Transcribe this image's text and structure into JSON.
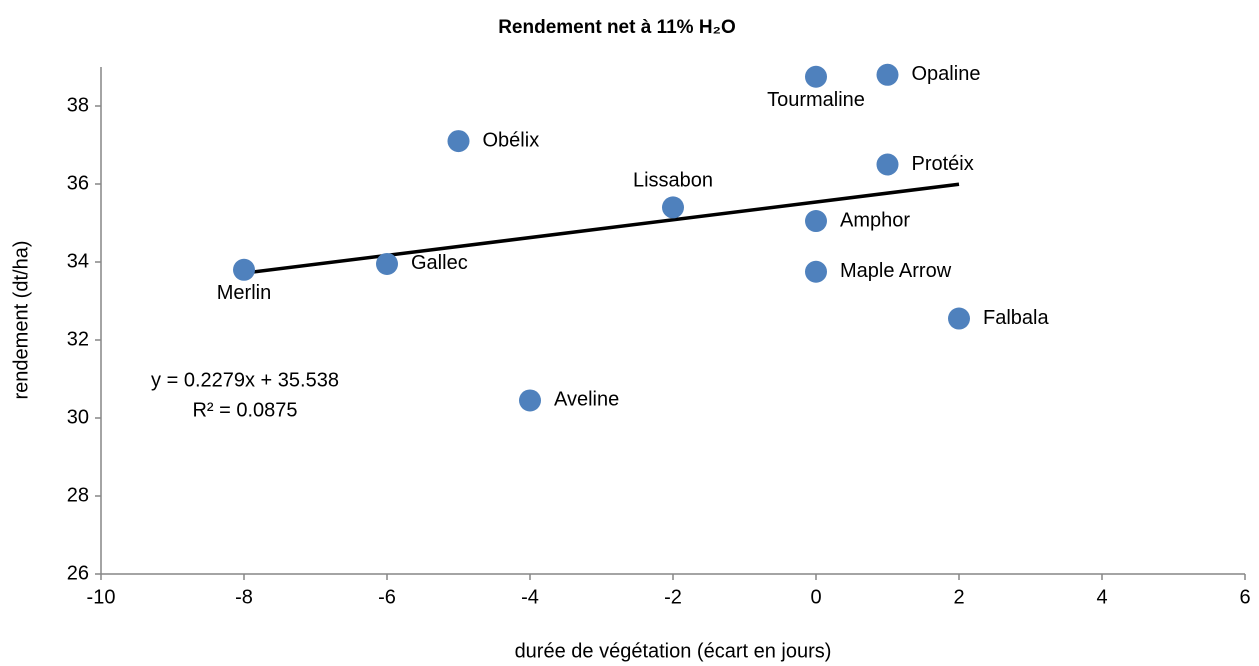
{
  "chart_data": {
    "type": "scatter",
    "title": "Rendement net à 11% H₂O",
    "x_label": "durée de végétation (écart en jours)",
    "y_label": "rendement (dt/ha)",
    "x": [
      -8,
      -6,
      -5,
      -4,
      -2,
      0,
      1,
      1,
      0,
      0,
      2
    ],
    "values": [
      33.8,
      33.95,
      37.1,
      30.45,
      35.4,
      38.75,
      38.8,
      36.5,
      35.05,
      33.75,
      32.55
    ],
    "point_labels": [
      "Merlin",
      "Gallec",
      "Obélix",
      "Aveline",
      "Lissabon",
      "Tourmaline",
      "Opaline",
      "Protéix",
      "Amphor",
      "Maple Arrow",
      "Falbala"
    ],
    "color": "#4f81bd",
    "xlim": [
      -10,
      6
    ],
    "xticks": [
      -10,
      -8,
      -6,
      -4,
      -2,
      0,
      2,
      4,
      6
    ],
    "ylim": [
      26,
      39
    ],
    "yticks": [
      26,
      28,
      30,
      32,
      34,
      36,
      38
    ],
    "trendline": {
      "slope": 0.2279,
      "intercept": 35.538,
      "x_range": [
        -8,
        2
      ],
      "color": "#000000",
      "equation": "y = 0.2279x + 35.538",
      "r_squared": "R² = 0.0875"
    }
  }
}
